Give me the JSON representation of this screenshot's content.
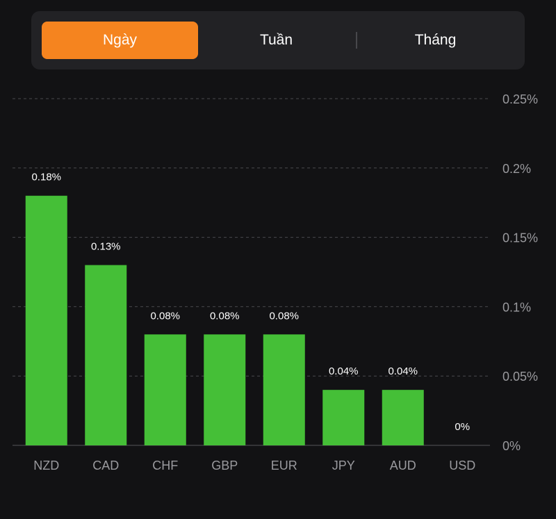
{
  "tabs": [
    {
      "label": "Ngày",
      "active": true
    },
    {
      "label": "Tuần",
      "active": false
    },
    {
      "label": "Tháng",
      "active": false
    }
  ],
  "colors": {
    "accent": "#f5841f",
    "bar": "#45bf37",
    "background": "#121214"
  },
  "chart_data": {
    "type": "bar",
    "categories": [
      "NZD",
      "CAD",
      "CHF",
      "GBP",
      "EUR",
      "JPY",
      "AUD",
      "USD"
    ],
    "values": [
      0.18,
      0.13,
      0.08,
      0.08,
      0.08,
      0.04,
      0.04,
      0
    ],
    "data_labels": [
      "0.18%",
      "0.13%",
      "0.08%",
      "0.08%",
      "0.08%",
      "0.04%",
      "0.04%",
      "0%"
    ],
    "y_ticks": [
      0,
      0.05,
      0.1,
      0.15,
      0.2,
      0.25
    ],
    "y_tick_labels": [
      "0%",
      "0.05%",
      "0.1%",
      "0.15%",
      "0.2%",
      "0.25%"
    ],
    "ylim": [
      0,
      0.25
    ],
    "y_axis_position": "right",
    "grid": true,
    "title": "",
    "xlabel": "",
    "ylabel": ""
  }
}
